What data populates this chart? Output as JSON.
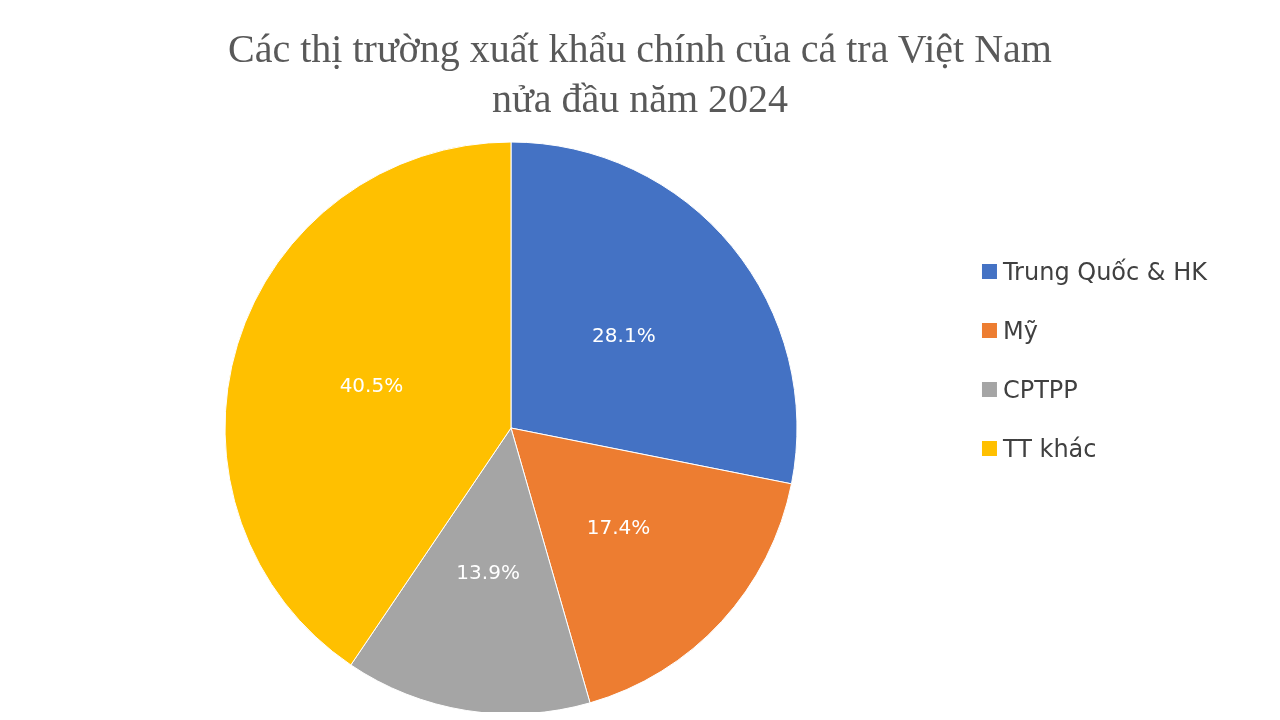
{
  "chart_data": {
    "type": "pie",
    "title": "Các thị trường xuất khẩu chính của cá tra Việt Nam\nnửa đầu năm 2024",
    "categories": [
      "Trung Quốc & HK",
      "Mỹ",
      "CPTPP",
      "TT khác"
    ],
    "values": [
      28.1,
      17.4,
      13.9,
      40.5
    ],
    "value_labels": [
      "28.1%",
      "17.4%",
      "13.9%",
      "40.5%"
    ],
    "colors": [
      "#4472c4",
      "#ed7d31",
      "#a5a5a5",
      "#ffc000"
    ],
    "legend": "right"
  }
}
